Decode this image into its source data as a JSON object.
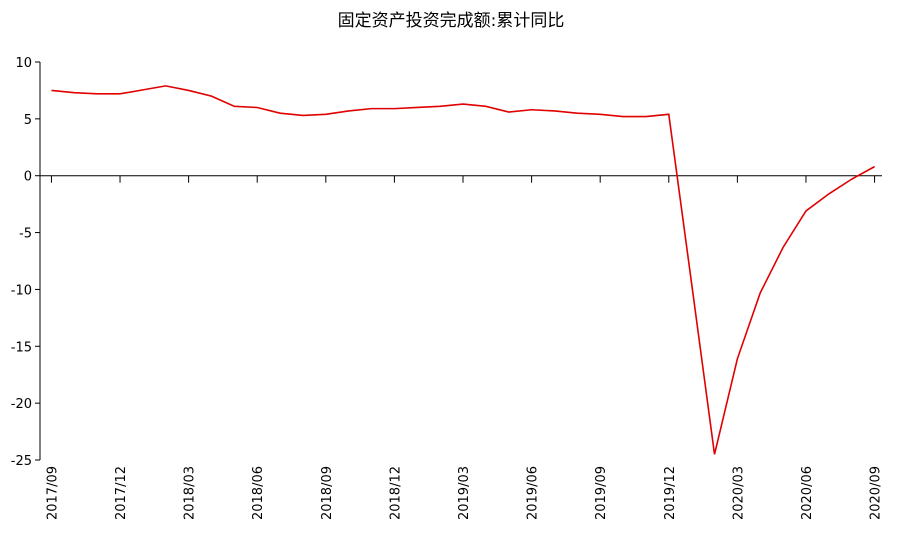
{
  "chart_data": {
    "type": "line",
    "title": "固定资产投资完成额:累计同比",
    "categories": [
      "2017/09",
      null,
      null,
      "2017/12",
      null,
      null,
      "2018/03",
      null,
      null,
      "2018/06",
      null,
      null,
      "2018/09",
      null,
      null,
      "2018/12",
      null,
      null,
      "2019/03",
      null,
      null,
      "2019/06",
      null,
      null,
      "2019/09",
      null,
      null,
      "2019/12",
      null,
      null,
      "2020/03",
      null,
      null,
      "2020/06",
      null,
      null,
      "2020/09"
    ],
    "series": [
      {
        "name": "固定资产投资完成额:累计同比",
        "color": "#e00000",
        "values": [
          7.5,
          7.3,
          7.2,
          7.2,
          7.55,
          7.9,
          7.5,
          7.0,
          6.1,
          6.0,
          5.5,
          5.3,
          5.4,
          5.7,
          5.9,
          5.9,
          6.0,
          6.1,
          6.3,
          6.1,
          5.6,
          5.8,
          5.7,
          5.5,
          5.4,
          5.2,
          5.2,
          5.4,
          -9.5,
          -24.5,
          -16.1,
          -10.3,
          -6.3,
          -3.1,
          -1.6,
          -0.3,
          0.8
        ]
      }
    ],
    "ylim": [
      -25,
      10
    ],
    "yticks": [
      -25,
      -20,
      -15,
      -10,
      -5,
      0,
      5,
      10
    ],
    "grid": false
  }
}
